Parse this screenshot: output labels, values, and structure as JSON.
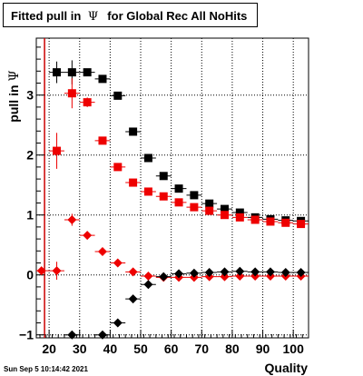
{
  "title": {
    "prefix": "Fitted pull in ",
    "symbol": "Ψ",
    "suffix": "for Global Rec All NoHits"
  },
  "timestamp": "Sun Sep  5 10:14:42 2021",
  "chart_data": {
    "type": "scatter",
    "xlabel": "Quality",
    "ylabel_prefix": "pull in ",
    "ylabel_symbol": "Ψ",
    "xlim": [
      15.8,
      105.0
    ],
    "ylim": [
      -1.05,
      3.95
    ],
    "xticks": [
      20,
      30,
      40,
      50,
      60,
      70,
      80,
      90,
      100
    ],
    "yticks": [
      -1,
      0,
      1,
      2,
      3
    ],
    "grid": true,
    "reference_line": {
      "x": 18.5,
      "color": "#cc0000"
    },
    "series": [
      {
        "color": "#000000",
        "marker": "square",
        "x": [
          22.5,
          27.5,
          32.5,
          37.5,
          42.5,
          47.5,
          52.5,
          57.5,
          62.5,
          67.5,
          72.5,
          77.5,
          82.5,
          87.5,
          92.5,
          97.5,
          102.5
        ],
        "y": [
          3.38,
          3.38,
          3.38,
          3.27,
          2.99,
          2.39,
          1.95,
          1.65,
          1.44,
          1.33,
          1.19,
          1.1,
          1.04,
          0.96,
          0.93,
          0.91,
          0.9
        ],
        "yerr": [
          0.18,
          0.2,
          0.0,
          0.0,
          0.0,
          0.0,
          0.0,
          0.0,
          0.0,
          0.0,
          0.0,
          0.0,
          0.0,
          0.0,
          0.0,
          0.0,
          0.0
        ]
      },
      {
        "color": "#ee0000",
        "marker": "square",
        "x": [
          22.5,
          27.5,
          32.5,
          37.5,
          42.5,
          47.5,
          52.5,
          57.5,
          62.5,
          67.5,
          72.5,
          77.5,
          82.5,
          87.5,
          92.5,
          97.5,
          102.5
        ],
        "y": [
          2.07,
          3.03,
          2.88,
          2.24,
          1.8,
          1.54,
          1.39,
          1.31,
          1.21,
          1.13,
          1.07,
          1.0,
          0.96,
          0.92,
          0.89,
          0.87,
          0.85
        ],
        "yerr": [
          0.3,
          0.25,
          0.08,
          0.0,
          0.0,
          0.0,
          0.0,
          0.0,
          0.0,
          0.0,
          0.0,
          0.0,
          0.0,
          0.0,
          0.0,
          0.0,
          0.0
        ]
      },
      {
        "color": "#ee0000",
        "marker": "diamond",
        "x": [
          17.5,
          22.5,
          27.5,
          32.5,
          37.5,
          42.5,
          47.5,
          52.5,
          57.5,
          62.5,
          67.5,
          72.5,
          77.5,
          82.5,
          87.5,
          92.5,
          97.5,
          102.5
        ],
        "y": [
          0.07,
          0.07,
          0.92,
          0.66,
          0.39,
          0.2,
          0.05,
          -0.02,
          -0.04,
          -0.04,
          -0.04,
          -0.03,
          -0.03,
          -0.02,
          -0.02,
          -0.02,
          -0.02,
          -0.02
        ],
        "yerr": [
          0.0,
          0.15,
          0.1,
          0.0,
          0.0,
          0.0,
          0.0,
          0.0,
          0.0,
          0.0,
          0.0,
          0.0,
          0.0,
          0.0,
          0.0,
          0.0,
          0.0,
          0.0
        ]
      },
      {
        "color": "#000000",
        "marker": "diamond",
        "x": [
          27.5,
          37.5,
          42.5,
          47.5,
          52.5,
          57.5,
          62.5,
          67.5,
          72.5,
          77.5,
          82.5,
          87.5,
          92.5,
          97.5,
          102.5
        ],
        "y": [
          -1.0,
          -1.0,
          -0.8,
          -0.4,
          -0.16,
          -0.03,
          0.02,
          0.03,
          0.04,
          0.05,
          0.06,
          0.05,
          0.05,
          0.04,
          0.04
        ],
        "yerr": [
          0.0,
          0.0,
          0.0,
          0.0,
          0.0,
          0.0,
          0.0,
          0.0,
          0.0,
          0.0,
          0.0,
          0.0,
          0.0,
          0.0,
          0.0
        ]
      }
    ]
  }
}
